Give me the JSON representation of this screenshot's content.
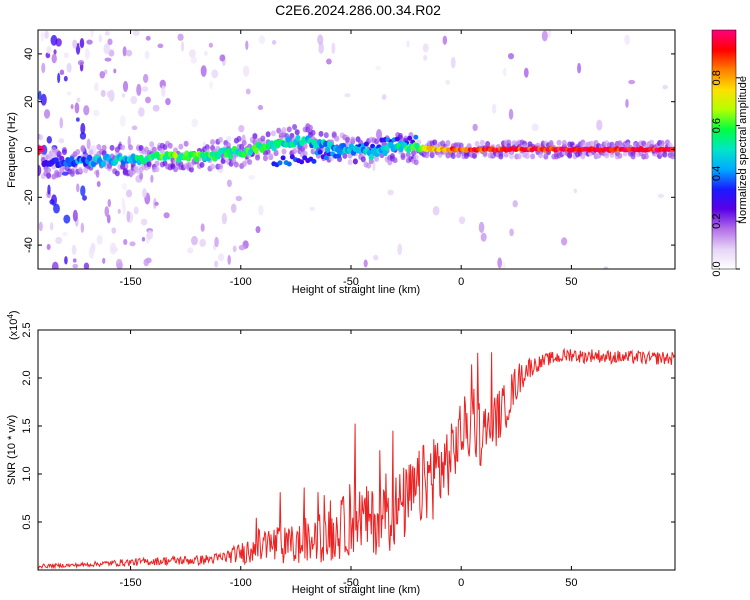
{
  "title": "C2E6.2024.286.00.34.R02",
  "chart_data": [
    {
      "type": "heatmap",
      "title": "C2E6.2024.286.00.34.R02",
      "xlabel": "Height of straight line (km)",
      "ylabel": "Frequency (Hz)",
      "xlim": [
        -192,
        97
      ],
      "ylim": [
        -50,
        50
      ],
      "xticks": [
        -150,
        -100,
        -50,
        0,
        50
      ],
      "yticks": [
        -40,
        -20,
        0,
        20,
        40
      ],
      "colorbar": {
        "label": "Normalized spectral amplitude",
        "range": [
          0,
          1
        ],
        "ticks": [
          0.0,
          0.2,
          0.4,
          0.6,
          0.8
        ],
        "colormap": [
          "#ffffff",
          "#e6d4f7",
          "#b36fe8",
          "#5a00e6",
          "#1a1aff",
          "#00aaff",
          "#00e6c8",
          "#00ff40",
          "#b4ff00",
          "#ffe000",
          "#ff7f00",
          "#ff0000",
          "#ff007f"
        ]
      },
      "ridge": [
        {
          "x": -190,
          "y": -6,
          "amp": 0.35
        },
        {
          "x": -180,
          "y": -5.5,
          "amp": 0.35
        },
        {
          "x": -170,
          "y": -5,
          "amp": 0.4
        },
        {
          "x": -160,
          "y": -4.5,
          "amp": 0.45
        },
        {
          "x": -150,
          "y": -4,
          "amp": 0.45
        },
        {
          "x": -140,
          "y": -3.5,
          "amp": 0.55
        },
        {
          "x": -130,
          "y": -3,
          "amp": 0.6
        },
        {
          "x": -120,
          "y": -3,
          "amp": 0.6
        },
        {
          "x": -110,
          "y": -2,
          "amp": 0.5
        },
        {
          "x": -100,
          "y": -1,
          "amp": 0.55
        },
        {
          "x": -90,
          "y": 1,
          "amp": 0.55
        },
        {
          "x": -80,
          "y": 3,
          "amp": 0.5
        },
        {
          "x": -70,
          "y": 4,
          "amp": 0.45
        },
        {
          "x": -60,
          "y": 1,
          "amp": 0.45
        },
        {
          "x": -50,
          "y": 0,
          "amp": 0.45
        },
        {
          "x": -40,
          "y": -2,
          "amp": 0.45
        },
        {
          "x": -30,
          "y": 1,
          "amp": 0.5
        },
        {
          "x": -20,
          "y": 0.5,
          "amp": 0.6
        },
        {
          "x": -10,
          "y": 0,
          "amp": 0.8
        },
        {
          "x": 0,
          "y": 0,
          "amp": 0.85
        },
        {
          "x": 10,
          "y": 0,
          "amp": 0.9
        },
        {
          "x": 20,
          "y": 0,
          "amp": 0.9
        },
        {
          "x": 30,
          "y": 0,
          "amp": 0.9
        },
        {
          "x": 40,
          "y": 0,
          "amp": 0.92
        },
        {
          "x": 50,
          "y": 0,
          "amp": 0.95
        },
        {
          "x": 60,
          "y": 0,
          "amp": 0.92
        },
        {
          "x": 70,
          "y": 0,
          "amp": 0.92
        },
        {
          "x": 80,
          "y": 0,
          "amp": 0.95
        },
        {
          "x": 90,
          "y": 0,
          "amp": 0.92
        },
        {
          "x": 97,
          "y": 0,
          "amp": 0.92
        }
      ]
    },
    {
      "type": "line",
      "xlabel": "Height of straight line (km)",
      "ylabel": "SNR (10 * v/v)",
      "y_multiplier": "(x10",
      "y_multiplier_exponent": "4",
      "y_multiplier_close": ")",
      "xlim": [
        -192,
        97
      ],
      "ylim": [
        0,
        2.5
      ],
      "xticks": [
        -150,
        -100,
        -50,
        0,
        50
      ],
      "yticks": [
        0.5,
        1.0,
        1.5,
        2.0,
        2.5
      ],
      "color": "#ee2222",
      "series": [
        {
          "x": [
            -192,
            -175,
            -160,
            -150,
            -140,
            -130,
            -120,
            -110,
            -100,
            -95,
            -90,
            -85,
            -80,
            -75,
            -70,
            -65,
            -60,
            -55,
            -50,
            -45,
            -40,
            -35,
            -30,
            -25,
            -20,
            -15,
            -10,
            -5,
            0,
            5,
            10,
            15,
            20,
            25,
            30,
            35,
            40,
            45,
            50,
            55,
            60,
            65,
            70,
            75,
            80,
            85,
            90,
            97
          ],
          "y": [
            0.04,
            0.05,
            0.07,
            0.08,
            0.09,
            0.1,
            0.1,
            0.12,
            0.18,
            0.22,
            0.25,
            0.26,
            0.25,
            0.26,
            0.28,
            0.3,
            0.35,
            0.42,
            0.5,
            0.55,
            0.5,
            0.55,
            0.62,
            0.7,
            0.82,
            0.95,
            1.05,
            1.15,
            1.45,
            1.5,
            1.4,
            1.55,
            1.7,
            1.95,
            2.1,
            2.15,
            2.2,
            2.22,
            2.25,
            2.22,
            2.24,
            2.22,
            2.22,
            2.21,
            2.22,
            2.2,
            2.21,
            2.2
          ],
          "noise": [
            0.02,
            0.02,
            0.03,
            0.04,
            0.04,
            0.05,
            0.05,
            0.06,
            0.1,
            0.18,
            0.2,
            0.22,
            0.2,
            0.22,
            0.22,
            0.22,
            0.28,
            0.32,
            0.35,
            0.35,
            0.35,
            0.38,
            0.4,
            0.4,
            0.4,
            0.45,
            0.5,
            0.35,
            0.35,
            0.35,
            0.35,
            0.3,
            0.25,
            0.2,
            0.12,
            0.08,
            0.07,
            0.07,
            0.08,
            0.07,
            0.07,
            0.07,
            0.07,
            0.07,
            0.07,
            0.07,
            0.07,
            0.07
          ]
        }
      ]
    }
  ]
}
